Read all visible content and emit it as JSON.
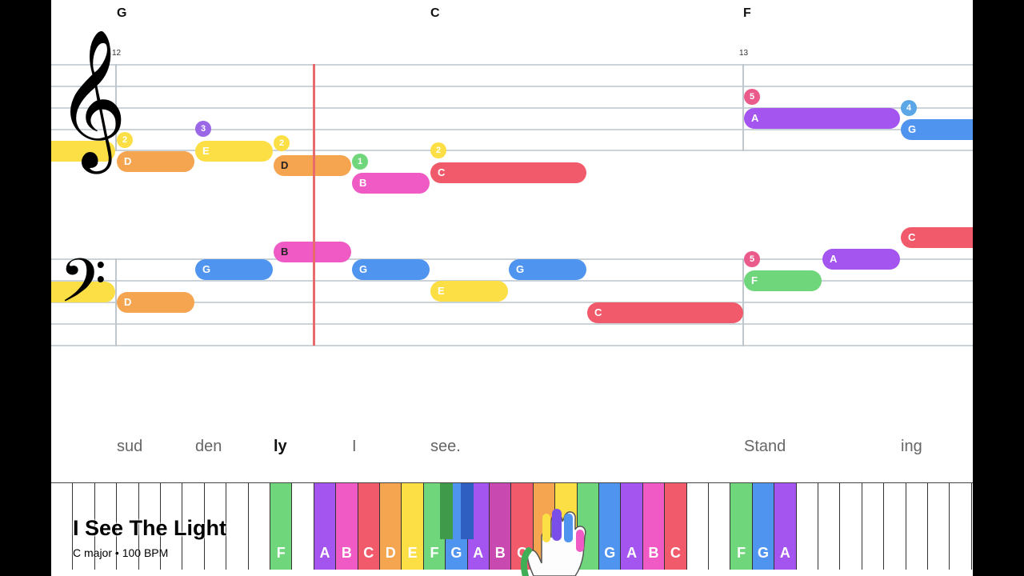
{
  "chords": [
    "G",
    "C",
    "F"
  ],
  "measures": [
    "12",
    "13"
  ],
  "clefs": {
    "treble": "𝄞",
    "bass": "𝄢"
  },
  "treble_notes": [
    {
      "label": "D",
      "color": "#f5a44f"
    },
    {
      "label": "E",
      "color": "#fbdf44"
    },
    {
      "label": "D",
      "color": "#f5a44f"
    },
    {
      "label": "B",
      "color": "#f05ac4"
    },
    {
      "label": "C",
      "color": "#f05a6a"
    },
    {
      "label": "A",
      "color": "#a455ef"
    },
    {
      "label": "G",
      "color": "#4f94ef"
    }
  ],
  "treble_fingers": [
    {
      "label": "2",
      "color": "#fbdf44"
    },
    {
      "label": "3",
      "color": "#9a67e6"
    },
    {
      "label": "2",
      "color": "#fbdf44"
    },
    {
      "label": "1",
      "color": "#6fd67b"
    },
    {
      "label": "2",
      "color": "#fbdf44"
    },
    {
      "label": "5",
      "color": "#ea5a8a"
    },
    {
      "label": "4",
      "color": "#5aa6e6"
    }
  ],
  "bass_notes": [
    {
      "label": "D",
      "color": "#f5a44f"
    },
    {
      "label": "G",
      "color": "#4f94ef"
    },
    {
      "label": "B",
      "color": "#f05ac4"
    },
    {
      "label": "G",
      "color": "#4f94ef"
    },
    {
      "label": "E",
      "color": "#fbdf44"
    },
    {
      "label": "G",
      "color": "#4f94ef"
    },
    {
      "label": "C",
      "color": "#f05a6a"
    },
    {
      "label": "F",
      "color": "#6fd67b"
    },
    {
      "label": "A",
      "color": "#a455ef"
    },
    {
      "label": "C",
      "color": "#f05a6a"
    }
  ],
  "bass_fingers": [
    {
      "label": "5",
      "color": "#ea5a8a"
    }
  ],
  "lyrics": [
    "sud",
    "den",
    "ly",
    "I",
    "see.",
    "Stand",
    "ing"
  ],
  "current_lyric_index": 2,
  "keyboard": {
    "white_keys": [
      {
        "label": "",
        "color": "#ffffff"
      },
      {
        "label": "",
        "color": "#ffffff"
      },
      {
        "label": "",
        "color": "#ffffff"
      },
      {
        "label": "",
        "color": "#ffffff"
      },
      {
        "label": "",
        "color": "#ffffff"
      },
      {
        "label": "",
        "color": "#ffffff"
      },
      {
        "label": "",
        "color": "#ffffff"
      },
      {
        "label": "",
        "color": "#ffffff"
      },
      {
        "label": "",
        "color": "#ffffff"
      },
      {
        "label": "",
        "color": "#ffffff"
      },
      {
        "label": "F",
        "color": "#6fd67b"
      },
      {
        "label": "",
        "color": "#ffffff"
      },
      {
        "label": "A",
        "color": "#a455ef"
      },
      {
        "label": "B",
        "color": "#f05ac4"
      },
      {
        "label": "C",
        "color": "#f05a6a"
      },
      {
        "label": "D",
        "color": "#f5a44f"
      },
      {
        "label": "E",
        "color": "#fbdf44"
      },
      {
        "label": "F",
        "color": "#6fd67b"
      },
      {
        "label": "G",
        "color": "#4f94ef"
      },
      {
        "label": "A",
        "color": "#a455ef"
      },
      {
        "label": "B",
        "color": "#c84ab0"
      },
      {
        "label": "C",
        "color": "#f05a6a"
      },
      {
        "label": "",
        "color": "#f5a44f"
      },
      {
        "label": "",
        "color": "#fbdf44"
      },
      {
        "label": "",
        "color": "#6fd67b"
      },
      {
        "label": "G",
        "color": "#4f94ef"
      },
      {
        "label": "A",
        "color": "#a455ef"
      },
      {
        "label": "B",
        "color": "#f05ac4"
      },
      {
        "label": "C",
        "color": "#f05a6a"
      },
      {
        "label": "",
        "color": "#ffffff"
      },
      {
        "label": "",
        "color": "#ffffff"
      },
      {
        "label": "F",
        "color": "#6fd67b"
      },
      {
        "label": "G",
        "color": "#4f94ef"
      },
      {
        "label": "A",
        "color": "#a455ef"
      },
      {
        "label": "",
        "color": "#ffffff"
      },
      {
        "label": "",
        "color": "#ffffff"
      },
      {
        "label": "",
        "color": "#ffffff"
      },
      {
        "label": "",
        "color": "#ffffff"
      },
      {
        "label": "",
        "color": "#ffffff"
      },
      {
        "label": "",
        "color": "#ffffff"
      },
      {
        "label": "",
        "color": "#ffffff"
      },
      {
        "label": "",
        "color": "#ffffff"
      }
    ],
    "black_keys": [
      {
        "color": "#3f9a4a"
      },
      {
        "color": "#2f5fc0"
      }
    ]
  },
  "song": {
    "title": "I See The Light",
    "key": "C major",
    "separator": "•",
    "tempo": "100 BPM"
  }
}
